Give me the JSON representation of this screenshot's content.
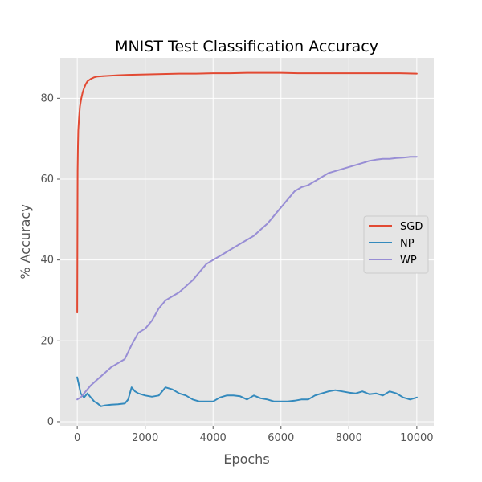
{
  "chart_data": {
    "type": "line",
    "title": "MNIST Test Classification Accuracy",
    "xlabel": "Epochs",
    "ylabel": "% Accuracy",
    "xlim": [
      -500,
      10500
    ],
    "ylim": [
      -1,
      90
    ],
    "xticks": [
      0,
      2000,
      4000,
      6000,
      8000,
      10000
    ],
    "yticks": [
      0,
      20,
      40,
      60,
      80
    ],
    "grid": true,
    "legend_position": "center-right",
    "background": "#e5e5e5",
    "series": [
      {
        "name": "SGD",
        "color": "#e24a33",
        "x": [
          0,
          10,
          20,
          30,
          50,
          80,
          120,
          160,
          200,
          250,
          300,
          400,
          500,
          600,
          800,
          1000,
          1200,
          1500,
          2000,
          2500,
          3000,
          3500,
          4000,
          4500,
          5000,
          5500,
          6000,
          6500,
          7000,
          7500,
          8000,
          8500,
          9000,
          9500,
          10000
        ],
        "y": [
          27,
          62,
          68,
          72,
          75,
          78,
          80,
          81.5,
          82.5,
          83.5,
          84.2,
          84.8,
          85.2,
          85.4,
          85.5,
          85.6,
          85.7,
          85.8,
          85.9,
          86.0,
          86.1,
          86.1,
          86.2,
          86.2,
          86.3,
          86.3,
          86.3,
          86.2,
          86.2,
          86.2,
          86.2,
          86.2,
          86.2,
          86.2,
          86.1
        ]
      },
      {
        "name": "NP",
        "color": "#348abd",
        "x": [
          0,
          50,
          100,
          150,
          200,
          300,
          400,
          500,
          600,
          700,
          800,
          1000,
          1200,
          1400,
          1500,
          1600,
          1700,
          1800,
          2000,
          2200,
          2400,
          2600,
          2800,
          3000,
          3200,
          3400,
          3600,
          3800,
          4000,
          4200,
          4400,
          4600,
          4800,
          5000,
          5200,
          5400,
          5600,
          5800,
          6000,
          6200,
          6400,
          6600,
          6800,
          7000,
          7200,
          7400,
          7600,
          7800,
          8000,
          8200,
          8400,
          8600,
          8800,
          9000,
          9200,
          9400,
          9600,
          9800,
          10000
        ],
        "y": [
          11,
          9,
          7,
          6.5,
          6,
          7,
          6,
          5,
          4.5,
          3.8,
          4,
          4.2,
          4.3,
          4.5,
          5.5,
          8.5,
          7.5,
          7,
          6.5,
          6.2,
          6.5,
          8.5,
          8,
          7,
          6.5,
          5.5,
          5,
          5,
          5,
          6,
          6.5,
          6.5,
          6.3,
          5.5,
          6.5,
          5.8,
          5.5,
          5,
          5,
          5,
          5.2,
          5.5,
          5.5,
          6.5,
          7,
          7.5,
          7.8,
          7.5,
          7.2,
          7,
          7.5,
          6.8,
          7,
          6.5,
          7.5,
          7,
          6,
          5.5,
          6
        ]
      },
      {
        "name": "WP",
        "color": "#988ed5",
        "x": [
          0,
          100,
          200,
          300,
          400,
          600,
          800,
          1000,
          1200,
          1400,
          1600,
          1800,
          2000,
          2200,
          2400,
          2600,
          2800,
          3000,
          3200,
          3400,
          3600,
          3800,
          4000,
          4200,
          4400,
          4600,
          4800,
          5000,
          5200,
          5400,
          5600,
          5800,
          6000,
          6200,
          6400,
          6600,
          6800,
          7000,
          7200,
          7400,
          7600,
          7800,
          8000,
          8200,
          8400,
          8600,
          8800,
          9000,
          9200,
          9400,
          9600,
          9800,
          10000
        ],
        "y": [
          5.5,
          6,
          7,
          8,
          9,
          10.5,
          12,
          13.5,
          14.5,
          15.5,
          19,
          22,
          23,
          25,
          28,
          30,
          31,
          32,
          33.5,
          35,
          37,
          39,
          40,
          41,
          42,
          43,
          44,
          45,
          46,
          47.5,
          49,
          51,
          53,
          55,
          57,
          58,
          58.5,
          59.5,
          60.5,
          61.5,
          62,
          62.5,
          63,
          63.5,
          64,
          64.5,
          64.8,
          65,
          65,
          65.2,
          65.3,
          65.5,
          65.5
        ]
      }
    ]
  }
}
